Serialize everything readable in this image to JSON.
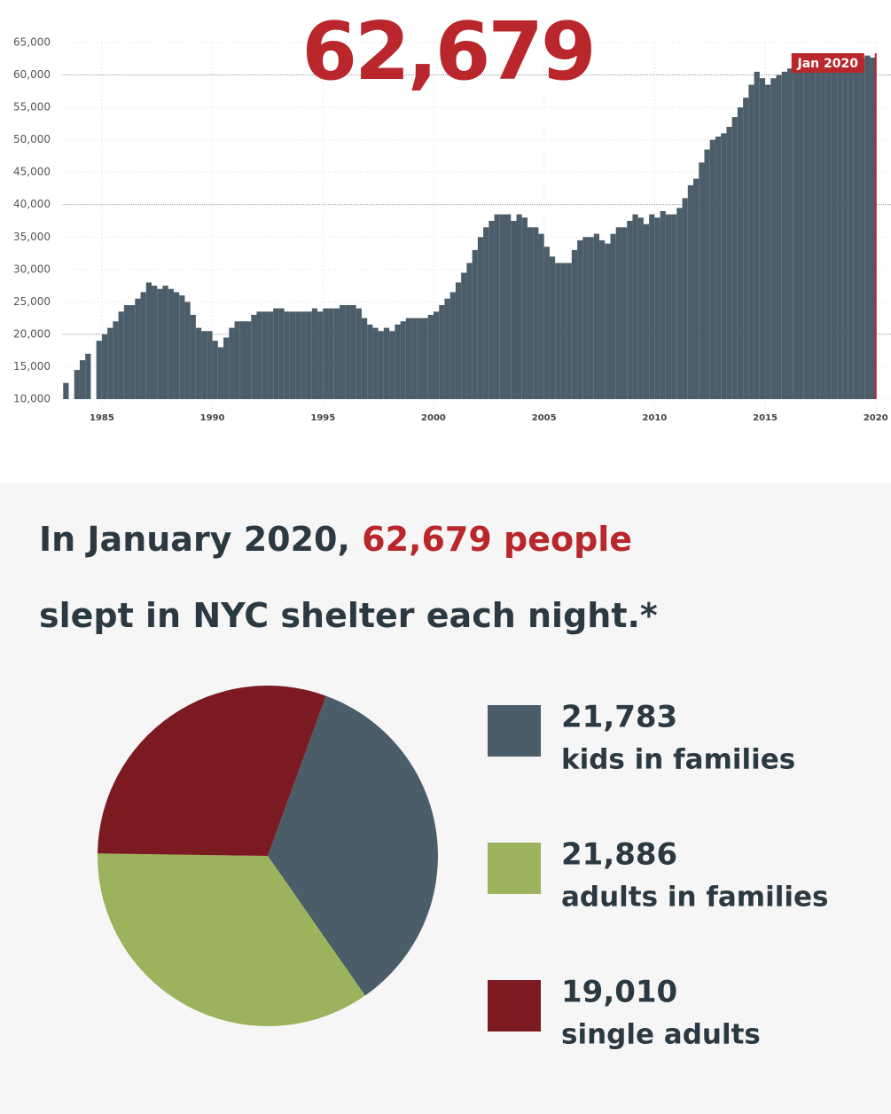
{
  "chart_data": [
    {
      "type": "bar",
      "title": "62,679",
      "annotation": "Jan 2020",
      "color": "#4b5d69",
      "annotation_color": "#b9262b",
      "x": [
        1983.5,
        1983.75,
        1984,
        1984.25,
        1984.5,
        1984.75,
        1985,
        1985.25,
        1985.5,
        1985.75,
        1986,
        1986.25,
        1986.5,
        1986.75,
        1987,
        1987.25,
        1987.5,
        1987.75,
        1988,
        1988.25,
        1988.5,
        1988.75,
        1989,
        1989.25,
        1989.5,
        1989.75,
        1990,
        1990.25,
        1990.5,
        1990.75,
        1991,
        1991.25,
        1991.5,
        1991.75,
        1992,
        1992.25,
        1992.5,
        1992.75,
        1993,
        1993.25,
        1993.5,
        1993.75,
        1994,
        1994.25,
        1994.5,
        1994.75,
        1995,
        1995.25,
        1995.5,
        1995.75,
        1996,
        1996.25,
        1996.5,
        1996.75,
        1997,
        1997.25,
        1997.5,
        1997.75,
        1998,
        1998.25,
        1998.5,
        1998.75,
        1999,
        1999.25,
        1999.5,
        1999.75,
        2000,
        2000.25,
        2000.5,
        2000.75,
        2001,
        2001.25,
        2001.5,
        2001.75,
        2002,
        2002.25,
        2002.5,
        2002.75,
        2003,
        2003.25,
        2003.5,
        2003.75,
        2004,
        2004.25,
        2004.5,
        2004.75,
        2005,
        2005.25,
        2005.5,
        2005.75,
        2006,
        2006.25,
        2006.5,
        2006.75,
        2007,
        2007.25,
        2007.5,
        2007.75,
        2008,
        2008.25,
        2008.5,
        2008.75,
        2009,
        2009.25,
        2009.5,
        2009.75,
        2010,
        2010.25,
        2010.5,
        2010.75,
        2011,
        2011.25,
        2011.5,
        2011.75,
        2012,
        2012.25,
        2012.5,
        2012.75,
        2013,
        2013.25,
        2013.5,
        2013.75,
        2014,
        2014.25,
        2014.5,
        2014.75,
        2015,
        2015.25,
        2015.5,
        2015.75,
        2016,
        2016.25,
        2016.5,
        2016.75,
        2017,
        2017.25,
        2017.5,
        2017.75,
        2018,
        2018.25,
        2018.5,
        2018.75,
        2019,
        2019.25,
        2019.5,
        2019.75,
        2020
      ],
      "values": [
        12500,
        null,
        14500,
        16000,
        17000,
        null,
        19000,
        20000,
        21000,
        22000,
        23500,
        24500,
        24500,
        25500,
        26500,
        28000,
        27500,
        27000,
        27500,
        27000,
        26500,
        26000,
        25000,
        23000,
        21000,
        20500,
        20500,
        19000,
        18000,
        19500,
        21000,
        22000,
        22000,
        22000,
        23000,
        23500,
        23500,
        23500,
        24000,
        24000,
        23500,
        23500,
        23500,
        23500,
        23500,
        24000,
        23500,
        24000,
        24000,
        24000,
        24500,
        24500,
        24500,
        24000,
        22500,
        21500,
        21000,
        20500,
        21000,
        20500,
        21500,
        22000,
        22500,
        22500,
        22500,
        22500,
        23000,
        23500,
        24500,
        25500,
        26500,
        28000,
        29500,
        31000,
        33000,
        35000,
        36500,
        37500,
        38500,
        38500,
        38500,
        37500,
        38500,
        38000,
        36500,
        36500,
        35500,
        33500,
        32000,
        31000,
        31000,
        31000,
        33000,
        34500,
        35000,
        35000,
        35500,
        34500,
        34000,
        35500,
        36500,
        36500,
        37500,
        38500,
        38000,
        37000,
        38500,
        38000,
        39000,
        38500,
        38500,
        39500,
        41000,
        43000,
        44000,
        46500,
        48500,
        50000,
        50500,
        51000,
        52000,
        53500,
        55000,
        56500,
        58500,
        60500,
        59500,
        58500,
        59500,
        60000,
        60500,
        61000,
        61000,
        61500,
        61500,
        61500,
        61500,
        62000,
        62500,
        62500,
        62000,
        62000,
        62500,
        62500,
        62500,
        63000,
        62679
      ],
      "xlim": [
        1983.2,
        2020.25
      ],
      "xticks": [
        1985,
        1990,
        1995,
        2000,
        2005,
        2010,
        2015,
        2020
      ],
      "ylim": [
        10000,
        65000
      ],
      "yticks": [
        {
          "value": 10000,
          "label": "10,000"
        },
        {
          "value": 15000,
          "label": "15,000"
        },
        {
          "value": 20000,
          "label": "20,000"
        },
        {
          "value": 25000,
          "label": "25,000"
        },
        {
          "value": 30000,
          "label": "30,000"
        },
        {
          "value": 35000,
          "label": "35,000"
        },
        {
          "value": 40000,
          "label": "40,000"
        },
        {
          "value": 45000,
          "label": "45,000"
        },
        {
          "value": 50000,
          "label": "50,000"
        },
        {
          "value": 55000,
          "label": "55,000"
        },
        {
          "value": 60000,
          "label": "60,000"
        },
        {
          "value": 65000,
          "label": "65,000"
        }
      ],
      "grid": true
    },
    {
      "type": "pie",
      "title": [
        "In January 2020, ",
        "62,679 people",
        "slept in NYC shelter each night.*"
      ],
      "categories": [
        "kids in families",
        "adults in families",
        "single adults"
      ],
      "values": [
        21783,
        21886,
        19010
      ],
      "value_labels": [
        "21,783",
        "21,886",
        "19,010"
      ],
      "colors": [
        "#4b5d69",
        "#9cb35e",
        "#7c1a22"
      ]
    }
  ]
}
